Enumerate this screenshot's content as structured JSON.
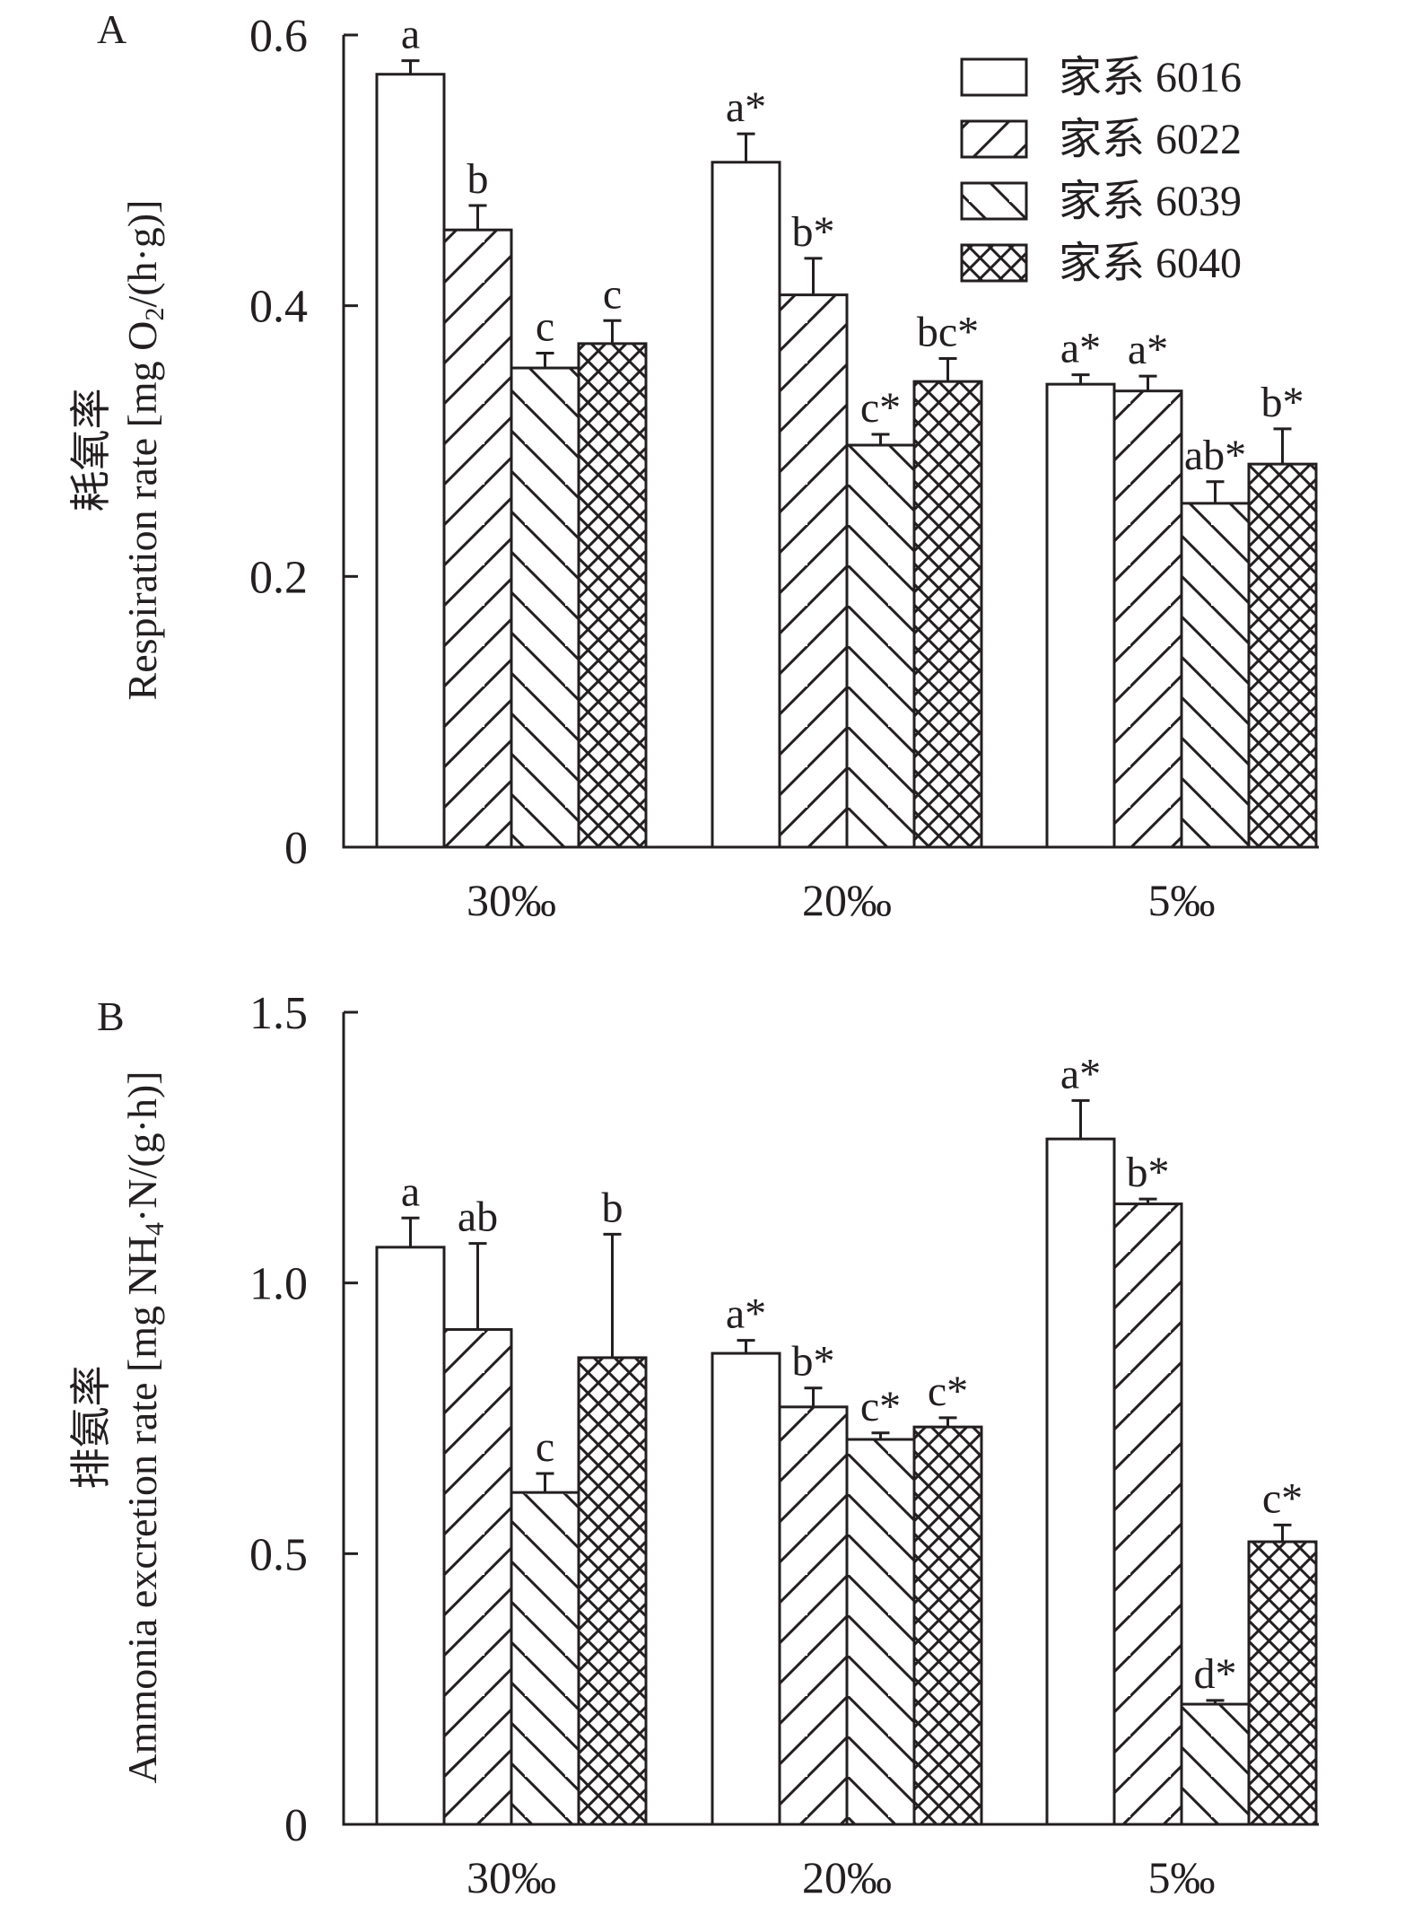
{
  "chart_data": [
    {
      "panel": "A",
      "type": "bar",
      "title": "",
      "xlabel": "",
      "ylabel_cn": "耗氧率",
      "ylabel_en_prefix": "Respiration rate [mg O",
      "ylabel_en_sub": "2",
      "ylabel_en_suffix": "/(h·g)]",
      "ylim": [
        0,
        0.6
      ],
      "yticks": [
        0,
        0.2,
        0.4,
        0.6
      ],
      "ytick_labels": [
        "0",
        "0.2",
        "0.4",
        "0.6"
      ],
      "categories": [
        "30‰",
        "20‰",
        "5‰"
      ],
      "legend_position": "top-right",
      "show_legend": true,
      "series": [
        {
          "name": "家系 6016",
          "pattern": "none",
          "values": [
            0.571,
            0.506,
            0.342
          ],
          "error": [
            0.01,
            0.021,
            0.007
          ],
          "labels": [
            "a",
            "a*",
            "a*"
          ]
        },
        {
          "name": "家系 6022",
          "pattern": "forward-diagonal",
          "values": [
            0.456,
            0.408,
            0.337
          ],
          "error": [
            0.018,
            0.027,
            0.011
          ],
          "labels": [
            "b",
            "b*",
            "a*"
          ]
        },
        {
          "name": "家系 6039",
          "pattern": "back-diagonal",
          "values": [
            0.354,
            0.297,
            0.254
          ],
          "error": [
            0.011,
            0.008,
            0.016
          ],
          "labels": [
            "c",
            "c*",
            "ab*"
          ]
        },
        {
          "name": "家系 6040",
          "pattern": "crosshatch",
          "values": [
            0.372,
            0.344,
            0.283
          ],
          "error": [
            0.017,
            0.017,
            0.026
          ],
          "labels": [
            "c",
            "bc*",
            "b*"
          ]
        }
      ]
    },
    {
      "panel": "B",
      "type": "bar",
      "title": "",
      "xlabel": "",
      "ylabel_cn": "排氨率",
      "ylabel_en_prefix": "Ammonia excretion rate [mg NH",
      "ylabel_en_sub": "4",
      "ylabel_en_suffix": "·N/(g·h)]",
      "ylim": [
        0,
        1.5
      ],
      "yticks": [
        0,
        0.5,
        1.0,
        1.5
      ],
      "ytick_labels": [
        "0",
        "0.5",
        "1.0",
        "1.5"
      ],
      "categories": [
        "30‰",
        "20‰",
        "5‰"
      ],
      "show_legend": false,
      "series": [
        {
          "name": "家系 6016",
          "pattern": "none",
          "values": [
            1.066,
            0.87,
            1.266
          ],
          "error": [
            0.054,
            0.024,
            0.071
          ],
          "labels": [
            "a",
            "a*",
            "a*"
          ]
        },
        {
          "name": "家系 6022",
          "pattern": "forward-diagonal",
          "values": [
            0.914,
            0.771,
            1.146
          ],
          "error": [
            0.159,
            0.035,
            0.009
          ],
          "labels": [
            "ab",
            "b*",
            "b*"
          ]
        },
        {
          "name": "家系 6039",
          "pattern": "back-diagonal",
          "values": [
            0.613,
            0.711,
            0.222
          ],
          "error": [
            0.035,
            0.012,
            0.007
          ],
          "labels": [
            "c",
            "c*",
            "d*"
          ]
        },
        {
          "name": "家系 6040",
          "pattern": "crosshatch",
          "values": [
            0.862,
            0.734,
            0.522
          ],
          "error": [
            0.228,
            0.017,
            0.031
          ],
          "labels": [
            "b",
            "c*",
            "c*"
          ]
        }
      ]
    }
  ],
  "colors": {
    "ink": "#231f20",
    "background": "#ffffff"
  }
}
